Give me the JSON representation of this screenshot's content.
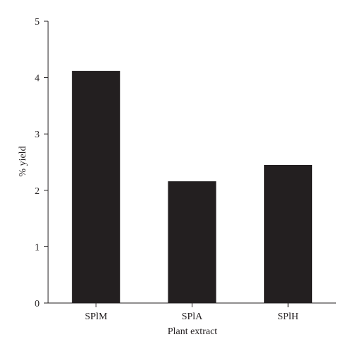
{
  "chart_data": {
    "type": "bar",
    "title": "",
    "xlabel": "Plant extract",
    "ylabel": "% yield",
    "categories": [
      "SPlM",
      "SPlA",
      "SPlH"
    ],
    "values": [
      4.12,
      2.16,
      2.45
    ],
    "ylim": [
      0,
      5
    ],
    "yticks": [
      "0",
      "1",
      "2",
      "3",
      "4",
      "5"
    ],
    "grid": false,
    "legend": "none",
    "colors": {
      "bar": "#231f20",
      "axis": "#231f20"
    }
  }
}
